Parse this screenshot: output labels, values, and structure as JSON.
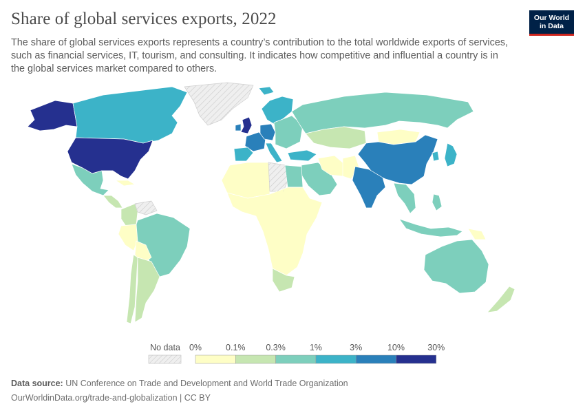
{
  "header": {
    "title": "Share of global services exports, 2022",
    "subtitle": "The share of global services exports represents a country’s contribution to the total worldwide exports of services, such as financial services, IT, tourism, and consulting. It indicates how competitive and influential a country is in the global services market compared to others."
  },
  "logo": {
    "line1": "Our World",
    "line2": "in Data",
    "bg": "#002147",
    "accent": "#ce261e"
  },
  "legend": {
    "no_data_label": "No data",
    "ticks": [
      "0%",
      "0.1%",
      "0.3%",
      "1%",
      "3%",
      "10%",
      "30%"
    ],
    "colors": [
      "#fefec6",
      "#c6e6b1",
      "#7dcfbc",
      "#3cb3c8",
      "#2a80ba",
      "#25308f"
    ],
    "no_data_color": "#efefef"
  },
  "footer": {
    "source_label": "Data source:",
    "source_text": "UN Conference on Trade and Development and World Trade Organization",
    "url": "OurWorldinData.org/trade-and-globalization | CC BY"
  },
  "map_regions": [
    {
      "name": "United States",
      "color": "#25308f"
    },
    {
      "name": "Alaska",
      "color": "#25308f"
    },
    {
      "name": "Canada",
      "color": "#3cb3c8"
    },
    {
      "name": "Greenland",
      "color": "#efefef"
    },
    {
      "name": "Mexico",
      "color": "#7dcfbc"
    },
    {
      "name": "Central America",
      "color": "#c6e6b1"
    },
    {
      "name": "Cuba",
      "color": "#fefec6"
    },
    {
      "name": "Colombia",
      "color": "#c6e6b1"
    },
    {
      "name": "Venezuela",
      "color": "#efefef"
    },
    {
      "name": "Brazil",
      "color": "#7dcfbc"
    },
    {
      "name": "Peru",
      "color": "#fefec6"
    },
    {
      "name": "Bolivia",
      "color": "#fefec6"
    },
    {
      "name": "Argentina",
      "color": "#c6e6b1"
    },
    {
      "name": "Chile",
      "color": "#c6e6b1"
    },
    {
      "name": "United Kingdom",
      "color": "#25308f"
    },
    {
      "name": "Ireland",
      "color": "#2a80ba"
    },
    {
      "name": "Iceland",
      "color": "#3cb3c8"
    },
    {
      "name": "France",
      "color": "#2a80ba"
    },
    {
      "name": "Germany",
      "color": "#2a80ba"
    },
    {
      "name": "Spain",
      "color": "#3cb3c8"
    },
    {
      "name": "Italy",
      "color": "#3cb3c8"
    },
    {
      "name": "Scandinavia",
      "color": "#3cb3c8"
    },
    {
      "name": "Eastern Europe",
      "color": "#7dcfbc"
    },
    {
      "name": "Turkey",
      "color": "#3cb3c8"
    },
    {
      "name": "Russia",
      "color": "#7dcfbc"
    },
    {
      "name": "Kazakhstan",
      "color": "#c6e6b1"
    },
    {
      "name": "Middle East",
      "color": "#7dcfbc"
    },
    {
      "name": "Iran",
      "color": "#fefec6"
    },
    {
      "name": "North Africa",
      "color": "#fefec6"
    },
    {
      "name": "Egypt",
      "color": "#7dcfbc"
    },
    {
      "name": "Libya",
      "color": "#efefef"
    },
    {
      "name": "Sub-Saharan Africa",
      "color": "#fefec6"
    },
    {
      "name": "South Africa",
      "color": "#c6e6b1"
    },
    {
      "name": "India",
      "color": "#2a80ba"
    },
    {
      "name": "Pakistan",
      "color": "#fefec6"
    },
    {
      "name": "China",
      "color": "#2a80ba"
    },
    {
      "name": "Mongolia",
      "color": "#fefec6"
    },
    {
      "name": "Japan",
      "color": "#3cb3c8"
    },
    {
      "name": "Korea",
      "color": "#3cb3c8"
    },
    {
      "name": "Southeast Asia",
      "color": "#7dcfbc"
    },
    {
      "name": "Indonesia",
      "color": "#7dcfbc"
    },
    {
      "name": "Philippines",
      "color": "#7dcfbc"
    },
    {
      "name": "Papua New Guinea",
      "color": "#fefec6"
    },
    {
      "name": "Australia",
      "color": "#7dcfbc"
    },
    {
      "name": "New Zealand",
      "color": "#c6e6b1"
    }
  ]
}
